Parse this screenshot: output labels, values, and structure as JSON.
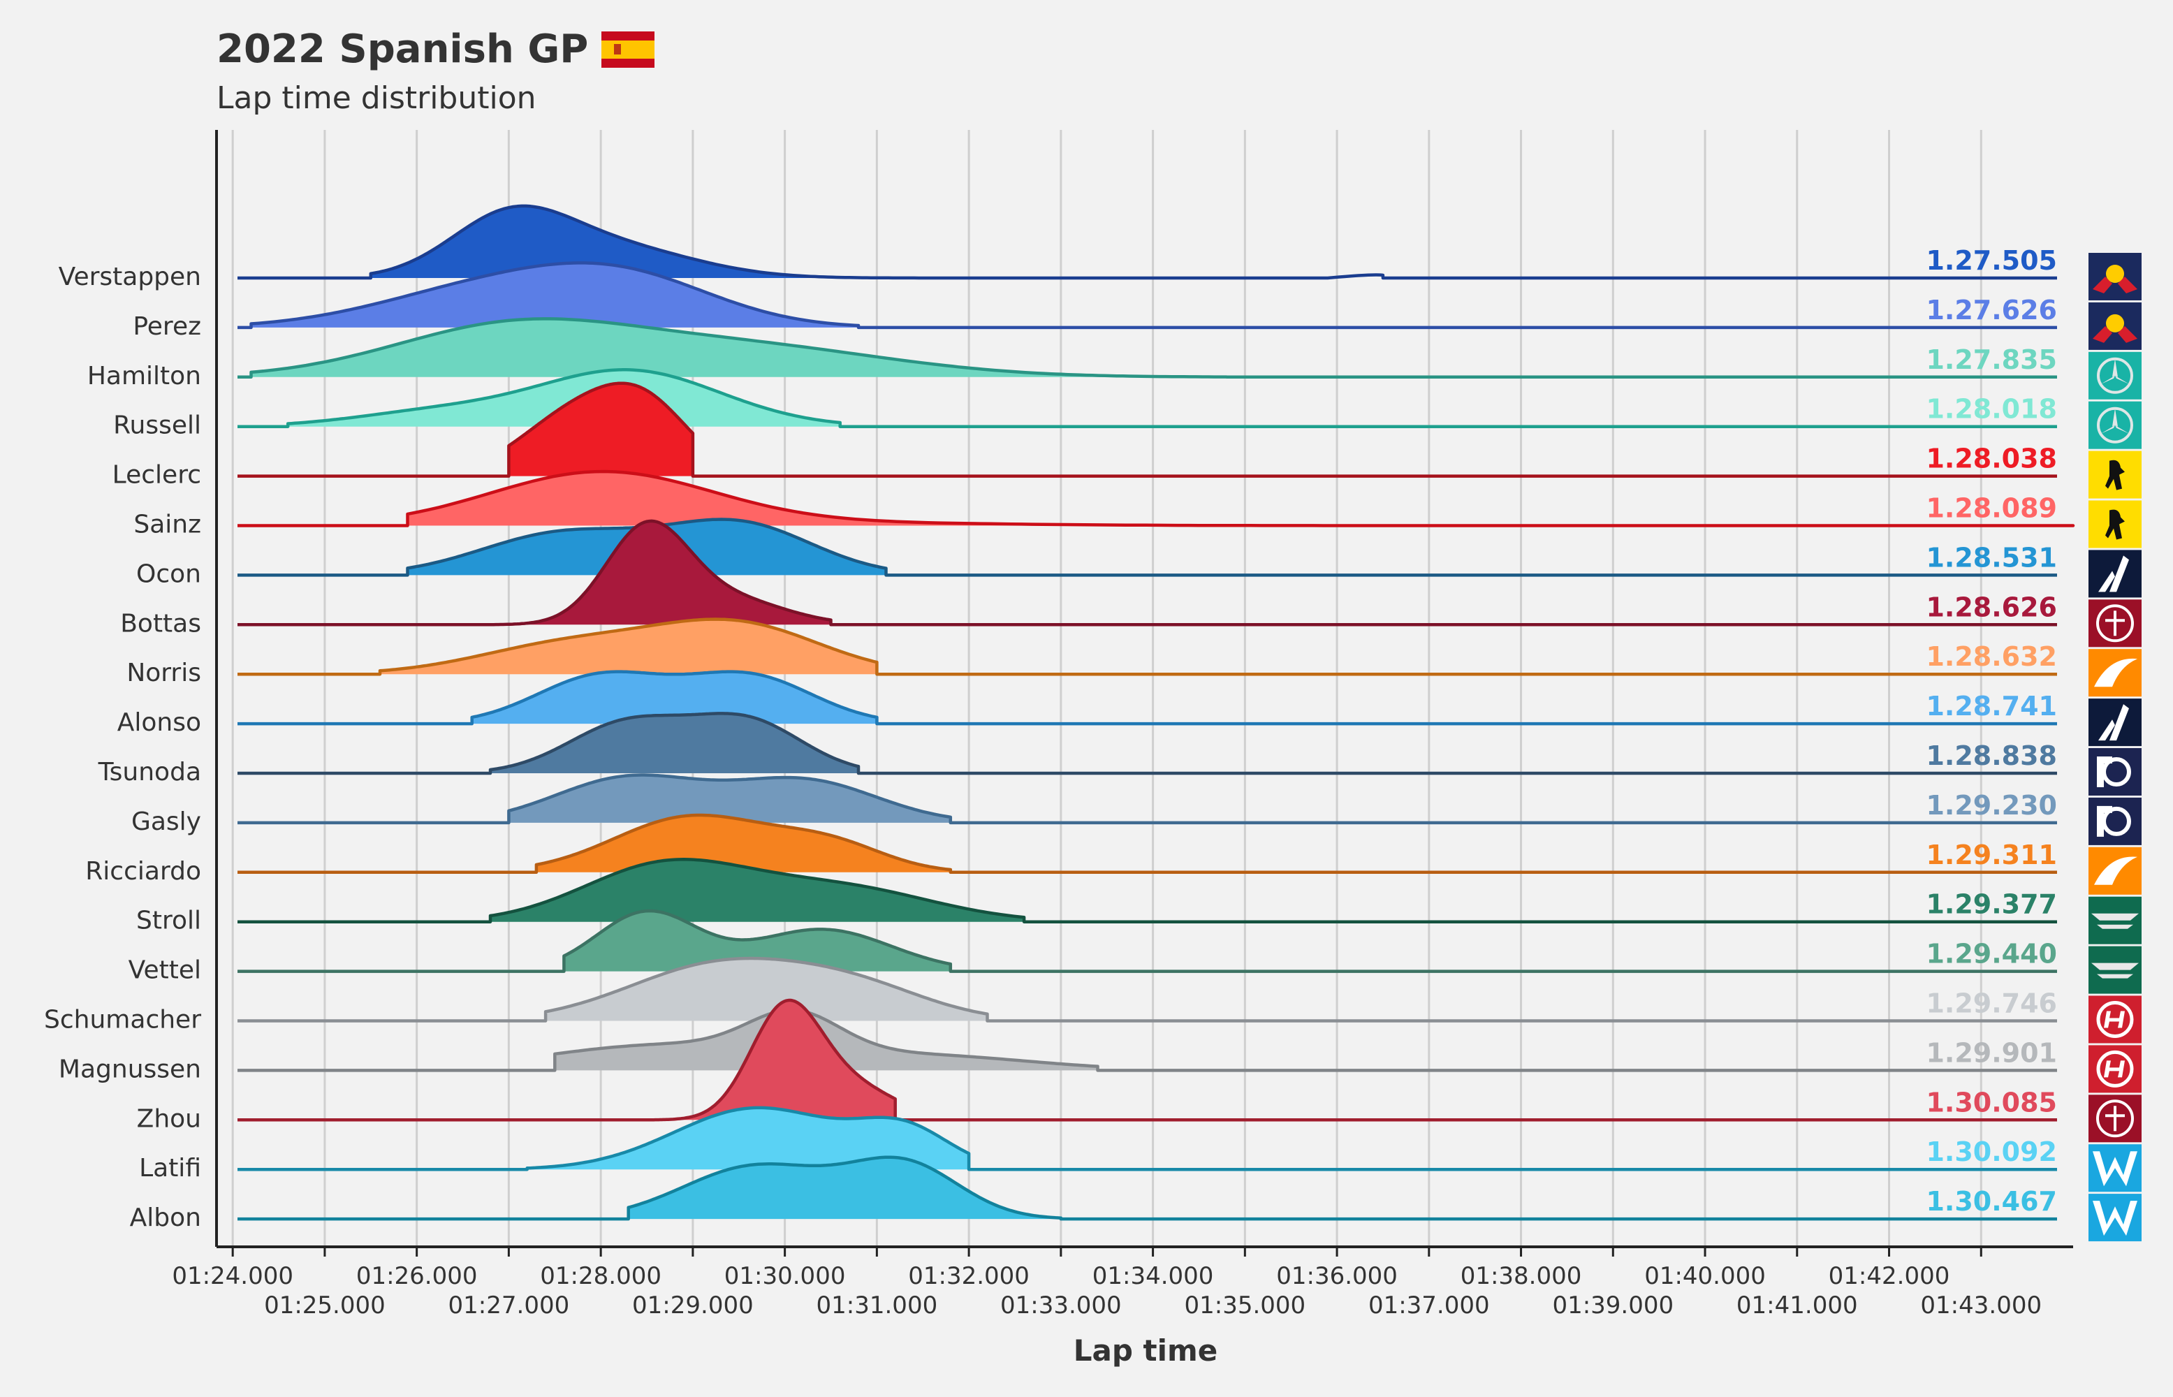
{
  "title": "2022 Spanish GP",
  "subtitle": "Lap time distribution",
  "flag_icon": "spain-flag-icon",
  "chart_data": {
    "type": "ridgeline",
    "xlabel": "Lap time",
    "xlim_seconds": [
      83.9,
      104.0
    ],
    "x_ticks_upper": [
      "01:24.000",
      "01:26.000",
      "01:28.000",
      "01:30.000",
      "01:32.000",
      "01:34.000",
      "01:36.000",
      "01:38.000",
      "01:40.000",
      "01:42.000"
    ],
    "x_ticks_lower": [
      "01:25.000",
      "01:27.000",
      "01:29.000",
      "01:31.000",
      "01:33.000",
      "01:35.000",
      "01:37.000",
      "01:39.000",
      "01:41.000",
      "01:43.000"
    ],
    "grid": true,
    "series": [
      {
        "name": "Verstappen",
        "median_label": "1.27.505",
        "fill": "#1f5bc6",
        "line": "#1a3d8f",
        "team_icon": "red-bull-logo-icon",
        "range": [
          85.5,
          93.0
        ],
        "tail_to": 96.5,
        "peaks": [
          {
            "mu": 87.0,
            "sd": 0.65,
            "h": 1.0
          },
          {
            "mu": 88.1,
            "sd": 0.9,
            "h": 0.55
          }
        ]
      },
      {
        "name": "Perez",
        "median_label": "1.27.626",
        "fill": "#5b7ee6",
        "line": "#2d4ea6",
        "team_icon": "red-bull-logo-icon",
        "range": [
          84.2,
          90.8
        ],
        "peaks": [
          {
            "mu": 86.8,
            "sd": 1.2,
            "h": 0.7
          },
          {
            "mu": 88.3,
            "sd": 1.0,
            "h": 0.75
          }
        ]
      },
      {
        "name": "Hamilton",
        "median_label": "1.27.835",
        "fill": "#6dd6c0",
        "line": "#2a9484",
        "team_icon": "mercedes-logo-icon",
        "range": [
          84.2,
          94.8
        ],
        "peaks": [
          {
            "mu": 87.0,
            "sd": 1.3,
            "h": 0.85
          },
          {
            "mu": 89.5,
            "sd": 1.6,
            "h": 0.55
          }
        ]
      },
      {
        "name": "Russell",
        "median_label": "1.28.018",
        "fill": "#80e8d4",
        "line": "#1ea08e",
        "team_icon": "mercedes-logo-icon",
        "range": [
          84.6,
          90.6
        ],
        "peaks": [
          {
            "mu": 88.3,
            "sd": 1.0,
            "h": 1.0
          },
          {
            "mu": 86.2,
            "sd": 0.9,
            "h": 0.25
          }
        ]
      },
      {
        "name": "Leclerc",
        "median_label": "1.28.038",
        "fill": "#ee1c25",
        "line": "#a5121c",
        "team_icon": "ferrari-logo-icon",
        "range": [
          87.0,
          89.0
        ],
        "peaks": [
          {
            "mu": 87.7,
            "sd": 0.6,
            "h": 1.05
          },
          {
            "mu": 88.5,
            "sd": 0.5,
            "h": 1.1
          }
        ]
      },
      {
        "name": "Sainz",
        "median_label": "1.28.089",
        "fill": "#ff6565",
        "line": "#cc0e18",
        "team_icon": "ferrari-logo-icon",
        "range": [
          85.9,
          104.0
        ],
        "peaks": [
          {
            "mu": 88.0,
            "sd": 1.2,
            "h": 0.95
          },
          {
            "mu": 90.5,
            "sd": 1.8,
            "h": 0.05
          }
        ]
      },
      {
        "name": "Ocon",
        "median_label": "1.28.531",
        "fill": "#2495d4",
        "line": "#1b5a85",
        "team_icon": "alpine-logo-icon",
        "range": [
          85.9,
          91.1
        ],
        "peaks": [
          {
            "mu": 87.6,
            "sd": 0.9,
            "h": 0.75
          },
          {
            "mu": 89.5,
            "sd": 0.8,
            "h": 0.9
          }
        ]
      },
      {
        "name": "Bottas",
        "median_label": "1.28.626",
        "fill": "#a8193c",
        "line": "#7c1128",
        "team_icon": "alfa-romeo-logo-icon",
        "range": [
          86.4,
          90.5
        ],
        "peaks": [
          {
            "mu": 88.5,
            "sd": 0.45,
            "h": 1.7
          },
          {
            "mu": 89.4,
            "sd": 0.6,
            "h": 0.45
          }
        ]
      },
      {
        "name": "Norris",
        "median_label": "1.28.632",
        "fill": "#ffa064",
        "line": "#c06a14",
        "team_icon": "mclaren-logo-icon",
        "range": [
          85.6,
          91.0
        ],
        "peaks": [
          {
            "mu": 87.7,
            "sd": 1.0,
            "h": 0.55
          },
          {
            "mu": 89.5,
            "sd": 0.9,
            "h": 0.85
          }
        ]
      },
      {
        "name": "Alonso",
        "median_label": "1.28.741",
        "fill": "#54aff0",
        "line": "#1f78b4",
        "team_icon": "alpine-logo-icon",
        "range": [
          86.6,
          91.0
        ],
        "peaks": [
          {
            "mu": 88.0,
            "sd": 0.7,
            "h": 0.85
          },
          {
            "mu": 89.6,
            "sd": 0.7,
            "h": 0.85
          }
        ]
      },
      {
        "name": "Tsunoda",
        "median_label": "1.28.838",
        "fill": "#4f7aa0",
        "line": "#2e4a66",
        "team_icon": "alphatauri-logo-icon",
        "range": [
          86.8,
          90.8
        ],
        "peaks": [
          {
            "mu": 88.3,
            "sd": 0.65,
            "h": 0.9
          },
          {
            "mu": 89.6,
            "sd": 0.6,
            "h": 0.9
          }
        ]
      },
      {
        "name": "Gasly",
        "median_label": "1.29.230",
        "fill": "#7399bc",
        "line": "#3f6a90",
        "team_icon": "alphatauri-logo-icon",
        "range": [
          87.0,
          91.8
        ],
        "peaks": [
          {
            "mu": 88.3,
            "sd": 0.8,
            "h": 0.8
          },
          {
            "mu": 90.2,
            "sd": 0.8,
            "h": 0.75
          }
        ]
      },
      {
        "name": "Ricciardo",
        "median_label": "1.29.311",
        "fill": "#f5821f",
        "line": "#b85e12",
        "team_icon": "mclaren-logo-icon",
        "range": [
          87.3,
          91.8
        ],
        "peaks": [
          {
            "mu": 89.0,
            "sd": 0.85,
            "h": 1.0
          },
          {
            "mu": 90.5,
            "sd": 0.6,
            "h": 0.45
          }
        ]
      },
      {
        "name": "Stroll",
        "median_label": "1.29.377",
        "fill": "#2b8268",
        "line": "#14523f",
        "team_icon": "aston-martin-logo-icon",
        "range": [
          86.8,
          92.6
        ],
        "peaks": [
          {
            "mu": 88.7,
            "sd": 0.9,
            "h": 1.0
          },
          {
            "mu": 90.6,
            "sd": 1.0,
            "h": 0.6
          }
        ]
      },
      {
        "name": "Vettel",
        "median_label": "1.29.440",
        "fill": "#5aa68c",
        "line": "#3c7363",
        "team_icon": "aston-martin-logo-icon",
        "range": [
          87.6,
          91.8
        ],
        "peaks": [
          {
            "mu": 88.5,
            "sd": 0.55,
            "h": 1.05
          },
          {
            "mu": 90.4,
            "sd": 0.75,
            "h": 0.75
          }
        ]
      },
      {
        "name": "Schumacher",
        "median_label": "1.29.746",
        "fill": "#c8ccd0",
        "line": "#8a8e93",
        "team_icon": "haas-logo-icon",
        "range": [
          87.4,
          92.2
        ],
        "peaks": [
          {
            "mu": 89.3,
            "sd": 1.0,
            "h": 1.0
          },
          {
            "mu": 90.8,
            "sd": 0.8,
            "h": 0.5
          }
        ]
      },
      {
        "name": "Magnussen",
        "median_label": "1.29.901",
        "fill": "#b5b8bb",
        "line": "#808488",
        "team_icon": "haas-logo-icon",
        "range": [
          87.5,
          93.4
        ],
        "peaks": [
          {
            "mu": 88.7,
            "sd": 1.3,
            "h": 0.45
          },
          {
            "mu": 90.1,
            "sd": 0.5,
            "h": 0.7
          },
          {
            "mu": 91.5,
            "sd": 1.2,
            "h": 0.25
          }
        ]
      },
      {
        "name": "Zhou",
        "median_label": "1.30.085",
        "fill": "#e04a5c",
        "line": "#a01e2e",
        "team_icon": "alfa-romeo-logo-icon",
        "range": [
          88.4,
          91.2
        ],
        "peaks": [
          {
            "mu": 90.0,
            "sd": 0.38,
            "h": 1.9
          },
          {
            "mu": 90.7,
            "sd": 0.5,
            "h": 0.6
          }
        ]
      },
      {
        "name": "Latifi",
        "median_label": "1.30.092",
        "fill": "#5ad2f4",
        "line": "#1889a8",
        "team_icon": "williams-logo-icon",
        "range": [
          87.2,
          92.0
        ],
        "peaks": [
          {
            "mu": 89.7,
            "sd": 0.9,
            "h": 1.1
          },
          {
            "mu": 91.3,
            "sd": 0.5,
            "h": 0.65
          }
        ]
      },
      {
        "name": "Albon",
        "median_label": "1.30.467",
        "fill": "#3bbfe3",
        "line": "#12829c",
        "team_icon": "williams-logo-icon",
        "range": [
          88.3,
          93.0
        ],
        "peaks": [
          {
            "mu": 89.7,
            "sd": 0.8,
            "h": 0.95
          },
          {
            "mu": 91.3,
            "sd": 0.6,
            "h": 0.95
          }
        ]
      }
    ]
  }
}
